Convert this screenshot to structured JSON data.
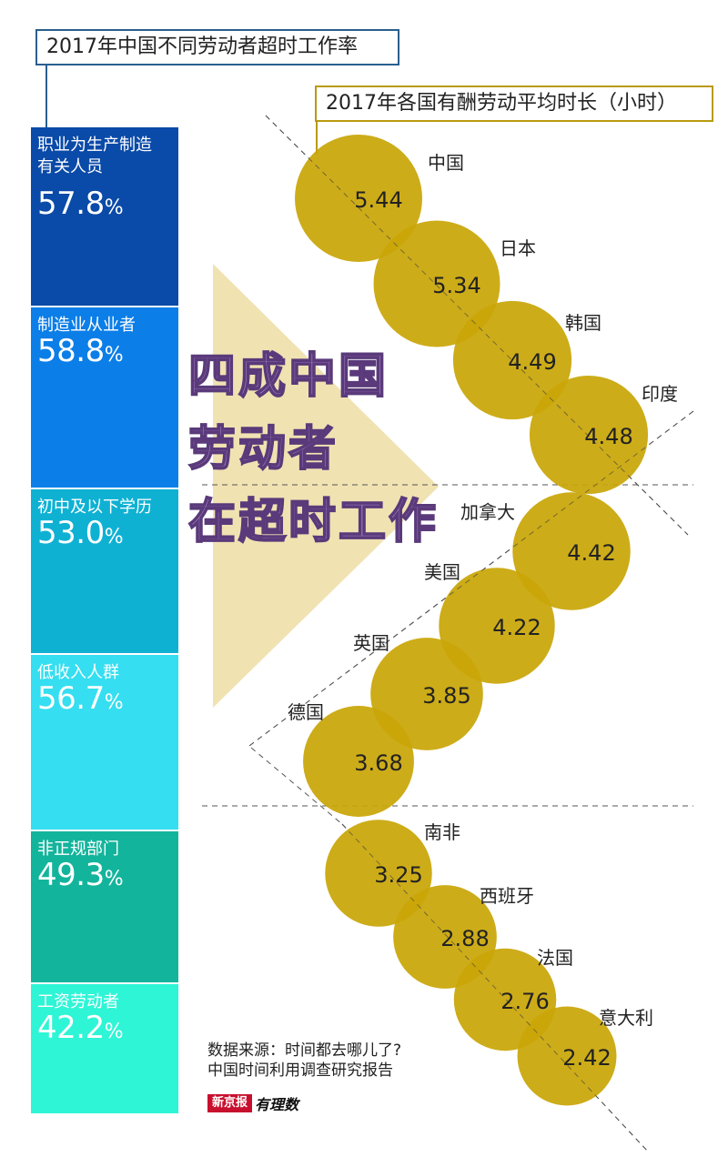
{
  "left_panel": {
    "title": "2017年中国不同劳动者超时工作率",
    "segments": [
      {
        "label": "职业为生产制造有关人员",
        "label_lines": [
          "职业为生产制造",
          "有关人员"
        ],
        "value": "57.8",
        "unit": "%",
        "color": "#0a4aa8"
      },
      {
        "label": "制造业从业者",
        "label_lines": [
          "制造业从业者"
        ],
        "value": "58.8",
        "unit": "%",
        "color": "#0b7ee8"
      },
      {
        "label": "初中及以下学历",
        "label_lines": [
          "初中及以下学历"
        ],
        "value": "53.0",
        "unit": "%",
        "color": "#0fb1d3"
      },
      {
        "label": "低收入人群",
        "label_lines": [
          "低收入人群"
        ],
        "value": "56.7",
        "unit": "%",
        "color": "#35def0"
      },
      {
        "label": "非正规部门",
        "label_lines": [
          "非正规部门"
        ],
        "value": "49.3",
        "unit": "%",
        "color": "#13b49c"
      },
      {
        "label": "工资劳动者",
        "label_lines": [
          "工资劳动者"
        ],
        "value": "42.2",
        "unit": "%",
        "color": "#2ef5d6"
      }
    ]
  },
  "slogan": [
    "四成中国",
    "劳动者",
    "在超时工作"
  ],
  "source": {
    "line1": "数据来源：时间都去哪儿了?",
    "line2": "中国时间利用调查研究报告",
    "logo_red": "新京报",
    "logo_text": "有理数"
  },
  "chart_data": {
    "type": "bubble",
    "title": "2017年各国有酬劳动平均时长（小时）",
    "categories": [
      "中国",
      "日本",
      "韩国",
      "印度",
      "加拿大",
      "美国",
      "英国",
      "德国",
      "南非",
      "西班牙",
      "法国",
      "意大利"
    ],
    "values": [
      5.44,
      5.34,
      4.49,
      4.48,
      4.42,
      4.22,
      3.85,
      3.68,
      3.25,
      2.88,
      2.76,
      2.42
    ],
    "value_labels": [
      "5.44",
      "5.34",
      "4.49",
      "4.48",
      "4.42",
      "4.22",
      "3.85",
      "3.68",
      "3.25",
      "2.88",
      "2.76",
      "2.42"
    ],
    "bubble_color": "#c9a608"
  }
}
